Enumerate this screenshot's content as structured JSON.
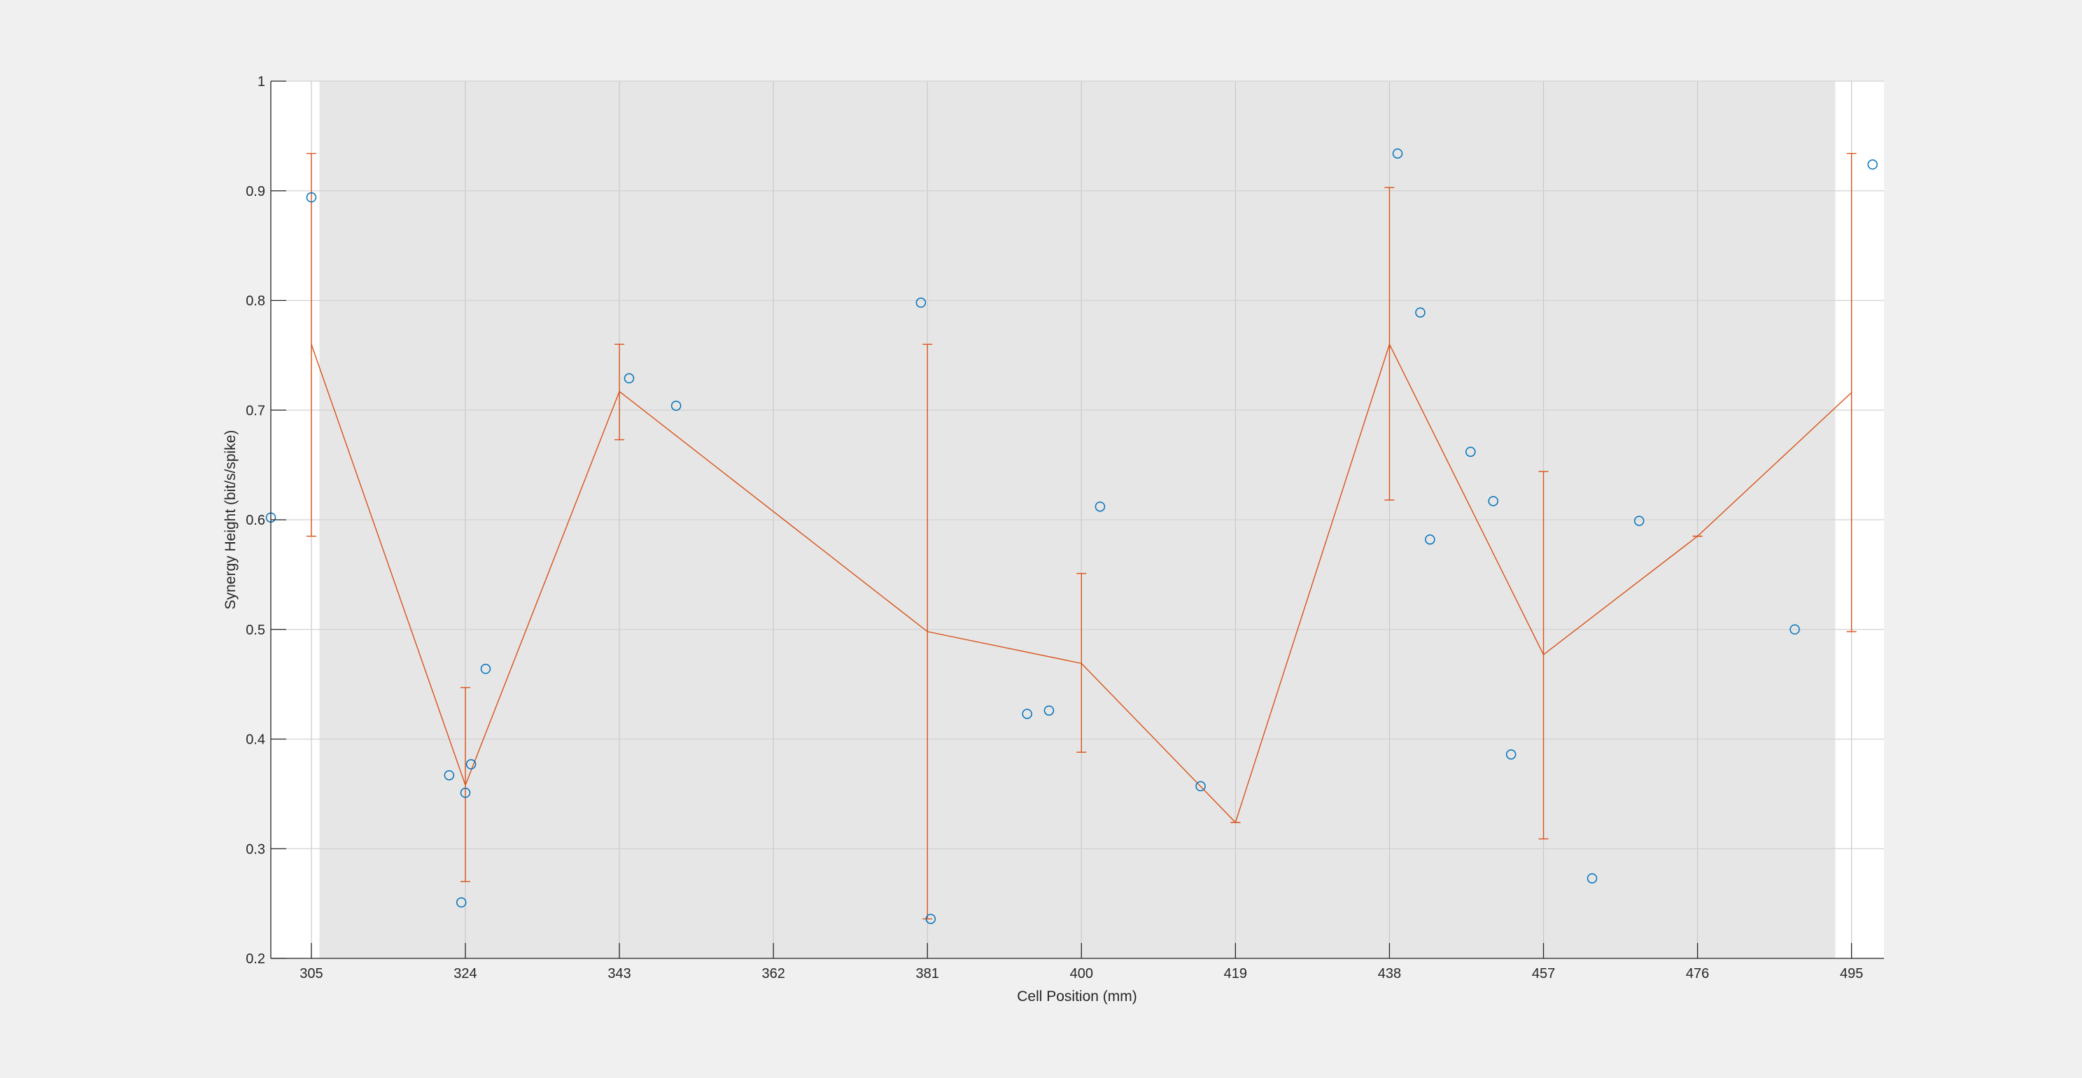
{
  "chart_data": {
    "type": "line",
    "title": "",
    "xlabel": "Cell Position (mm)",
    "ylabel": "Synergy Height (bit/s/spike)",
    "xlim": [
      300,
      499
    ],
    "ylim": [
      0.2,
      1.0
    ],
    "xticks": [
      305,
      324,
      343,
      362,
      381,
      400,
      419,
      438,
      457,
      476,
      495
    ],
    "yticks": [
      0.2,
      0.3,
      0.4,
      0.5,
      0.6,
      0.7,
      0.8,
      0.9,
      1
    ],
    "ytick_labels": [
      "0.2",
      "0.3",
      "0.4",
      "0.5",
      "0.6",
      "0.7",
      "0.8",
      "0.9",
      "1"
    ],
    "grid": true,
    "shaded_region": {
      "x": [
        306,
        493
      ],
      "color": "#e6e6e6"
    },
    "plot_background": "#ffffff",
    "series": [
      {
        "type": "scatter",
        "marker": "circle-open",
        "color": "#0072bd",
        "x": [
          300,
          305,
          322,
          323.5,
          324,
          324.7,
          326.5,
          344.2,
          350,
          380.2,
          381.4,
          393.3,
          396,
          402.3,
          414.7,
          439,
          441.8,
          443,
          448,
          450.8,
          453,
          463,
          468.8,
          488,
          497.6
        ],
        "y": [
          0.602,
          0.894,
          0.367,
          0.251,
          0.351,
          0.377,
          0.464,
          0.729,
          0.704,
          0.798,
          0.236,
          0.423,
          0.426,
          0.612,
          0.357,
          0.934,
          0.789,
          0.582,
          0.662,
          0.617,
          0.386,
          0.273,
          0.599,
          0.5,
          0.924
        ]
      },
      {
        "type": "errorbar",
        "color": "#d95319",
        "x": [
          305,
          324,
          343,
          381,
          400,
          419,
          438,
          457,
          476,
          495
        ],
        "y": [
          0.76,
          0.358,
          0.717,
          0.498,
          0.469,
          0.324,
          0.76,
          0.477,
          0.585,
          0.716
        ],
        "lower": [
          0.585,
          0.27,
          0.673,
          0.236,
          0.388,
          0.324,
          0.618,
          0.309,
          0.585,
          0.498
        ],
        "upper": [
          0.934,
          0.447,
          0.76,
          0.76,
          0.551,
          0.324,
          0.903,
          0.644,
          0.585,
          0.934
        ]
      }
    ]
  }
}
